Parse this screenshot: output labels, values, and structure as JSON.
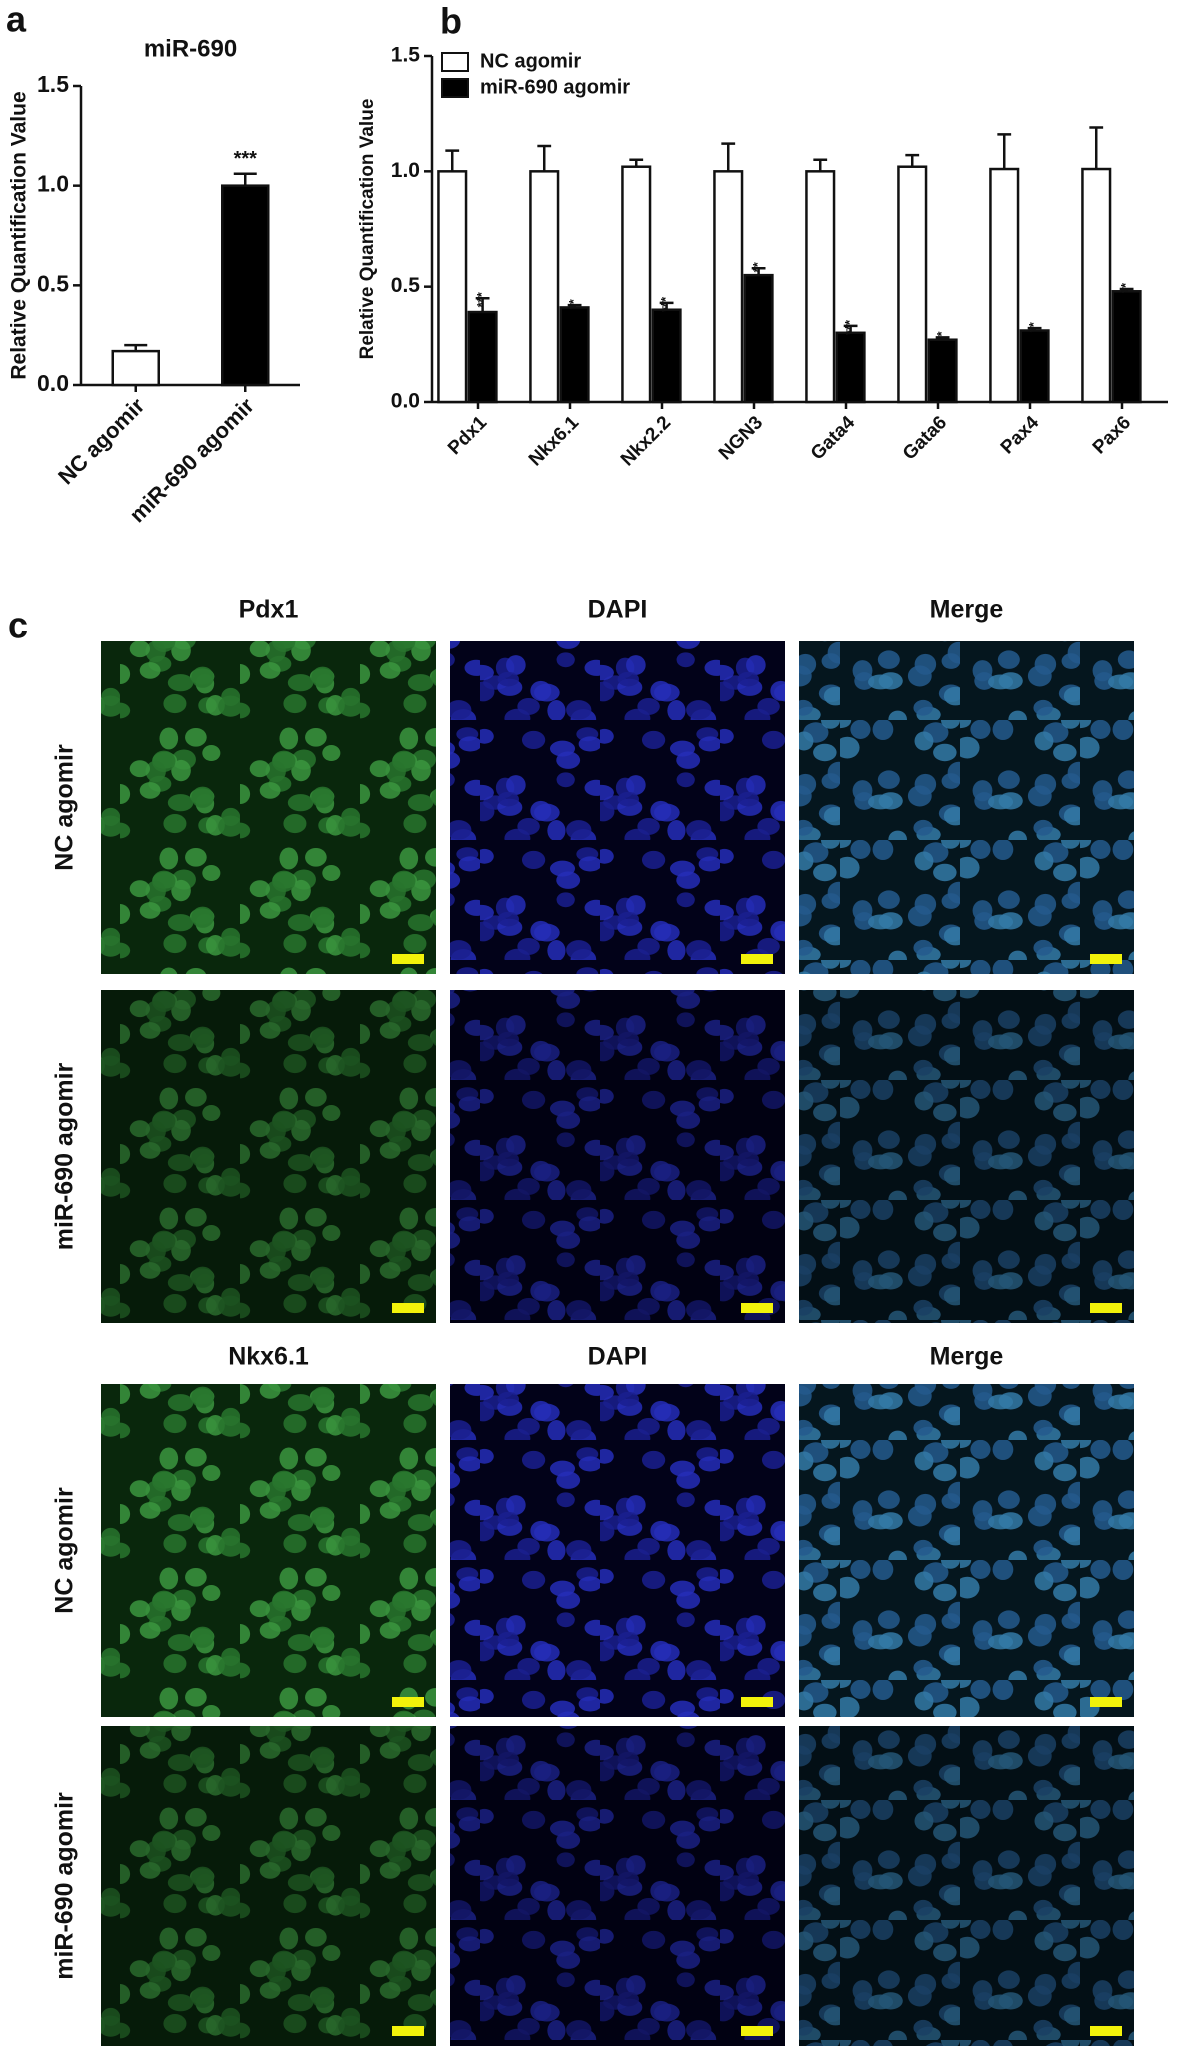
{
  "panel_labels": [
    "a",
    "b",
    "c"
  ],
  "chart_data": [
    {
      "type": "bar",
      "title": "miR-690",
      "y_label": "Relative Quantification Value",
      "categories": [
        "NC agomir",
        "miR-690 agomir"
      ],
      "series": [
        {
          "colors": [
            "#ffffff",
            "#000000"
          ],
          "values": [
            0.17,
            1.0
          ],
          "errors": [
            0.03,
            0.06
          ],
          "significance": [
            null,
            "***"
          ]
        }
      ],
      "ylim": [
        0,
        1.5
      ],
      "yticks": [
        {
          "value": 0,
          "label": "0.0"
        },
        0.5,
        {
          "value": 1,
          "label": "1.0"
        },
        1.5
      ]
    },
    {
      "type": "bar",
      "y_label": "Relative Quantification Value",
      "categories": [
        "Pdx1",
        "Nkx6.1",
        "Nkx2.2",
        "NGN3",
        "Gata4",
        "Gata6",
        "Pax4",
        "Pax6"
      ],
      "series": [
        {
          "name": "NC agomir",
          "color": "#ffffff",
          "values": [
            1.0,
            1.0,
            1.02,
            1.0,
            1.0,
            1.02,
            1.01,
            1.01
          ],
          "errors": [
            0.09,
            0.11,
            0.03,
            0.12,
            0.05,
            0.05,
            0.15,
            0.18
          ]
        },
        {
          "name": "miR-690 agomir",
          "color": "#000000",
          "values": [
            0.39,
            0.41,
            0.4,
            0.55,
            0.3,
            0.27,
            0.31,
            0.48
          ],
          "errors": [
            0.06,
            0.01,
            0.03,
            0.03,
            0.03,
            0.01,
            0.01,
            0.01
          ],
          "significance": [
            "***",
            "**",
            "***",
            "**",
            "***",
            "*",
            "**",
            "**"
          ]
        }
      ],
      "ylim": [
        0,
        1.5
      ],
      "yticks": [
        {
          "value": 0,
          "label": "0.0"
        },
        0.5,
        {
          "value": 1,
          "label": "1.0"
        },
        1.5
      ],
      "legend": "top-left"
    }
  ],
  "microscopy": {
    "channel_colors": [
      "#2e9e4f",
      "#1a1aa8",
      "#111111"
    ],
    "blocks": [
      {
        "channels": [
          "Pdx1",
          "DAPI",
          "Merge"
        ],
        "rows": [
          "NC agomir",
          "miR-690 agomir"
        ]
      },
      {
        "channels": [
          "Nkx6.1",
          "DAPI",
          "Merge"
        ],
        "rows": [
          "NC agomir",
          "miR-690 agomir"
        ]
      }
    ]
  }
}
